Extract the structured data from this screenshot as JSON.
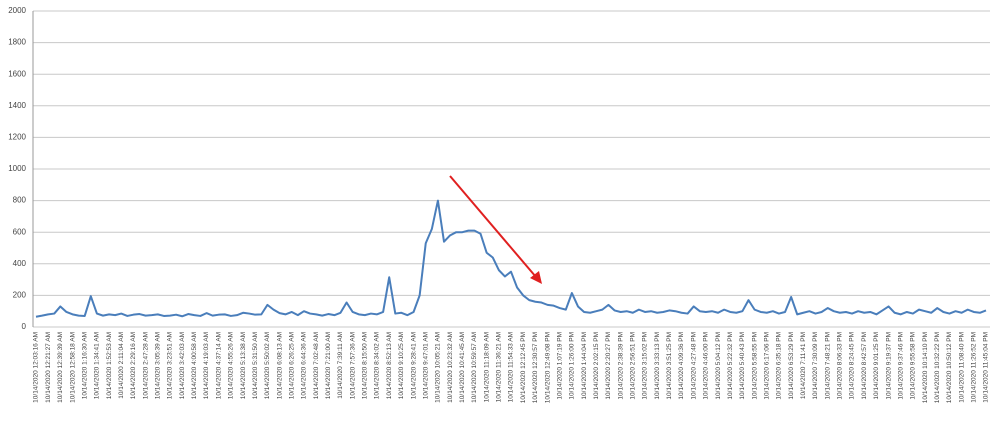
{
  "chart_data": {
    "type": "line",
    "categories": [
      "10/14/2020 12:03:16 AM",
      null,
      "10/14/2020 12:21:27 AM",
      null,
      "10/14/2020 12:39:39 AM",
      null,
      "10/14/2020 12:58:18 AM",
      null,
      "10/14/2020 1:16:30 AM",
      null,
      "10/14/2020 1:34:41 AM",
      null,
      "10/14/2020 1:52:53 AM",
      null,
      "10/14/2020 2:11:04 AM",
      null,
      "10/14/2020 2:29:16 AM",
      null,
      "10/14/2020 2:47:28 AM",
      null,
      "10/14/2020 3:05:39 AM",
      null,
      "10/14/2020 3:23:51 AM",
      null,
      "10/14/2020 3:42:03 AM",
      null,
      "10/14/2020 4:00:58 AM",
      null,
      "10/14/2020 4:19:03 AM",
      null,
      "10/14/2020 4:37:14 AM",
      null,
      "10/14/2020 4:55:26 AM",
      null,
      "10/14/2020 5:13:38 AM",
      null,
      "10/14/2020 5:31:50 AM",
      null,
      "10/14/2020 5:50:02 AM",
      null,
      "10/14/2020 6:08:13 AM",
      null,
      "10/14/2020 6:26:25 AM",
      null,
      "10/14/2020 6:44:36 AM",
      null,
      "10/14/2020 7:02:48 AM",
      null,
      "10/14/2020 7:21:00 AM",
      null,
      "10/14/2020 7:39:11 AM",
      null,
      "10/14/2020 7:57:36 AM",
      null,
      "10/14/2020 8:15:50 AM",
      null,
      "10/14/2020 8:34:02 AM",
      null,
      "10/14/2020 8:52:13 AM",
      null,
      "10/14/2020 9:10:25 AM",
      null,
      "10/14/2020 9:28:41 AM",
      null,
      "10/14/2020 9:47:01 AM",
      null,
      "10/14/2020 10:05:21 AM",
      null,
      "10/14/2020 10:23:32 AM",
      null,
      "10/14/2020 10:41:45 AM",
      null,
      "10/14/2020 10:59:57 AM",
      null,
      "10/14/2020 11:18:09 AM",
      null,
      "10/14/2020 11:36:21 AM",
      null,
      "10/14/2020 11:54:33 AM",
      null,
      "10/14/2020 12:12:45 PM",
      null,
      "10/14/2020 12:30:57 PM",
      null,
      "10/14/2020 12:49:08 PM",
      null,
      "10/14/2020 1:07:19 PM",
      null,
      "10/14/2020 1:26:00 PM",
      null,
      "10/14/2020 1:44:04 PM",
      null,
      "10/14/2020 2:02:15 PM",
      null,
      "10/14/2020 2:20:27 PM",
      null,
      "10/14/2020 2:38:39 PM",
      null,
      "10/14/2020 2:56:51 PM",
      null,
      "10/14/2020 3:15:02 PM",
      null,
      "10/14/2020 3:33:13 PM",
      null,
      "10/14/2020 3:51:25 PM",
      null,
      "10/14/2020 4:09:36 PM",
      null,
      "10/14/2020 4:27:48 PM",
      null,
      "10/14/2020 4:46:00 PM",
      null,
      "10/14/2020 5:04:12 PM",
      null,
      "10/14/2020 5:22:32 PM",
      null,
      "10/14/2020 5:40:43 PM",
      null,
      "10/14/2020 5:58:55 PM",
      null,
      "10/14/2020 6:17:06 PM",
      null,
      "10/14/2020 6:35:18 PM",
      null,
      "10/14/2020 6:53:29 PM",
      null,
      "10/14/2020 7:11:41 PM",
      null,
      "10/14/2020 7:30:09 PM",
      null,
      "10/14/2020 7:48:21 PM",
      null,
      "10/14/2020 8:06:33 PM",
      null,
      "10/14/2020 8:24:45 PM",
      null,
      "10/14/2020 8:42:57 PM",
      null,
      "10/14/2020 9:01:25 PM",
      null,
      "10/14/2020 9:19:37 PM",
      null,
      "10/14/2020 9:37:46 PM",
      null,
      "10/14/2020 9:55:58 PM",
      null,
      "10/14/2020 10:14:10 PM",
      null,
      "10/14/2020 10:32:22 PM",
      null,
      "10/14/2020 10:50:12 PM",
      null,
      "10/14/2020 11:08:40 PM",
      null,
      "10/14/2020 11:26:52 PM",
      null,
      "10/14/2020 11:45:04 PM"
    ],
    "series": [
      {
        "color": "#4a7ebb",
        "values": [
          65,
          72,
          80,
          85,
          130,
          95,
          80,
          72,
          70,
          195,
          85,
          72,
          80,
          75,
          85,
          70,
          78,
          82,
          72,
          75,
          80,
          70,
          72,
          78,
          68,
          82,
          75,
          70,
          88,
          72,
          78,
          80,
          70,
          75,
          90,
          85,
          78,
          80,
          140,
          110,
          88,
          80,
          95,
          75,
          100,
          85,
          80,
          72,
          82,
          75,
          90,
          155,
          95,
          80,
          75,
          85,
          80,
          95,
          315,
          85,
          90,
          75,
          95,
          200,
          530,
          620,
          800,
          540,
          580,
          600,
          600,
          610,
          610,
          590,
          470,
          440,
          360,
          320,
          350,
          250,
          200,
          170,
          160,
          155,
          140,
          135,
          120,
          110,
          215,
          130,
          95,
          90,
          100,
          110,
          140,
          105,
          95,
          100,
          90,
          110,
          95,
          100,
          90,
          95,
          105,
          100,
          90,
          85,
          130,
          100,
          95,
          100,
          90,
          110,
          95,
          90,
          100,
          170,
          110,
          95,
          90,
          100,
          85,
          95,
          190,
          80,
          90,
          100,
          85,
          95,
          120,
          100,
          90,
          95,
          85,
          100,
          90,
          95,
          80,
          105,
          130,
          90,
          80,
          95,
          85,
          110,
          100,
          90,
          120,
          95,
          85,
          100,
          90,
          110,
          95,
          90,
          105
        ]
      }
    ],
    "ylim": [
      0,
      2000
    ],
    "yticks": [
      0,
      200,
      400,
      600,
      800,
      1000,
      1200,
      1400,
      1600,
      1800,
      2000
    ],
    "grid": true
  }
}
